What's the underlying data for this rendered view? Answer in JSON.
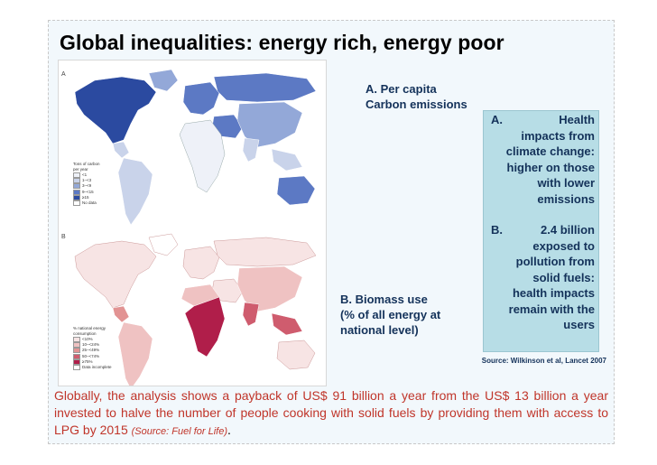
{
  "slide": {
    "title": "Global inequalities: energy rich, energy poor"
  },
  "figure": {
    "panel_a_letter": "A",
    "panel_b_letter": "B",
    "legend_a": {
      "title_line1": "Tons of carbon",
      "title_line2": "per year",
      "items": [
        "<1",
        "1–<3",
        "3–<9",
        "9–<15",
        "≥15",
        "No data"
      ],
      "colors": [
        "#eef1f8",
        "#c9d3ea",
        "#93a8d8",
        "#5c79c4",
        "#2b4aa0",
        "#ffffff"
      ]
    },
    "legend_b": {
      "title_line1": "% national energy",
      "title_line2": "consumption",
      "items": [
        "<10%",
        "10–<24%",
        "25–<49%",
        "50–<74%",
        "≥75%",
        "Data incomplete"
      ],
      "colors": [
        "#f7e4e4",
        "#efc2c2",
        "#e29393",
        "#cf5c6e",
        "#b01e4a",
        "#ffffff"
      ]
    }
  },
  "labels": {
    "a_line1": "A. Per capita",
    "a_line2": "Carbon emissions",
    "b_line1": "B. Biomass use",
    "b_line2": "(% of all energy at",
    "b_line3": "national level)"
  },
  "box": {
    "a_letter": "A.",
    "a_first": "Health",
    "a_lines": [
      "impacts from",
      "climate change:",
      "higher on those",
      "with lower",
      "emissions"
    ],
    "b_letter": "B.",
    "b_first": "2.4 billion",
    "b_lines": [
      "exposed to",
      "pollution from",
      "solid fuels:",
      "health impacts",
      "remain with the",
      "users"
    ]
  },
  "source": "Source: Wilkinson et al, Lancet 2007",
  "bottom": {
    "text": "Globally, the analysis shows a payback of US$ 91 billion a year from the US$ 13 billion a year invested to halve the number of people cooking with solid fuels by providing them with access to LPG by 2015 ",
    "source": "(Source: Fuel for Life)",
    "end": "."
  },
  "colors": {
    "title": "#000000",
    "label_blue": "#14325a",
    "box_fill": "#b7dde6",
    "bottom_red": "#c0352a"
  }
}
